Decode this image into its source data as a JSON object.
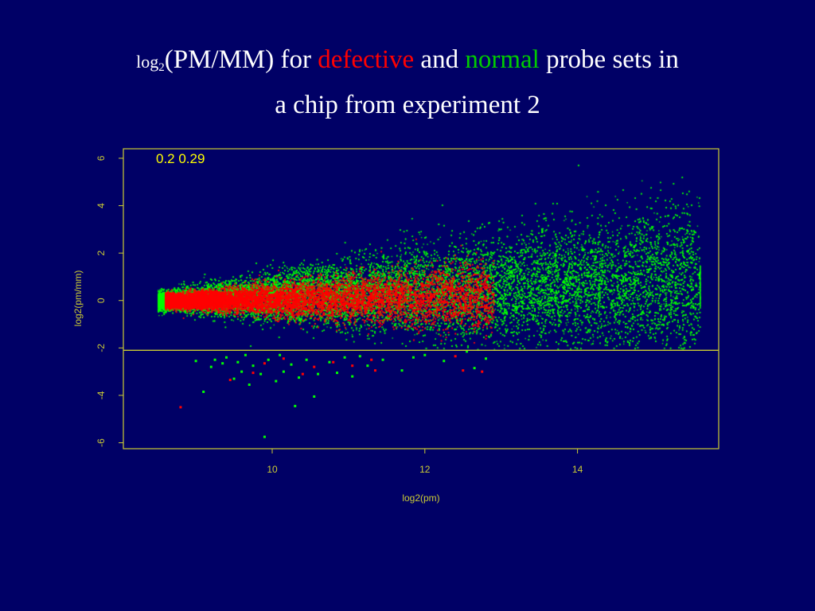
{
  "slide": {
    "title_prefix": "log",
    "title_sub": "2",
    "title_part1": "(PM/MM) for ",
    "title_defective": "defective",
    "title_and": " and ",
    "title_normal": "normal",
    "title_part2": " probe sets in",
    "title_line2": "a chip from experiment 2"
  },
  "colors": {
    "background": "#000066",
    "axes": "#cccc33",
    "defective": "#ff0000",
    "normal": "#00ff00",
    "annotation": "#ffff00"
  },
  "chart_data": {
    "type": "scatter",
    "title": "",
    "xlabel": "log2(pm)",
    "ylabel": "log2(pm/mm)",
    "xlim": [
      8.05,
      15.85
    ],
    "ylim": [
      -6.25,
      6.4
    ],
    "xticks": [
      10,
      12,
      14
    ],
    "yticks": [
      -6,
      -4,
      -2,
      0,
      2,
      4,
      6
    ],
    "annotation": "0.2 0.29",
    "hline_y": -2.1,
    "grid": false,
    "legend": "none",
    "series": [
      {
        "color_key": "normal",
        "outliers_below_cutoff": [
          [
            9.0,
            -2.55
          ],
          [
            9.1,
            -3.85
          ],
          [
            9.2,
            -2.8
          ],
          [
            9.25,
            -2.5
          ],
          [
            9.35,
            -2.65
          ],
          [
            9.4,
            -2.4
          ],
          [
            9.5,
            -3.3
          ],
          [
            9.55,
            -2.6
          ],
          [
            9.6,
            -3.0
          ],
          [
            9.65,
            -2.3
          ],
          [
            9.7,
            -3.55
          ],
          [
            9.75,
            -2.75
          ],
          [
            9.85,
            -3.1
          ],
          [
            9.9,
            -5.75
          ],
          [
            9.95,
            -2.5
          ],
          [
            10.05,
            -3.4
          ],
          [
            10.1,
            -2.3
          ],
          [
            10.15,
            -3.0
          ],
          [
            10.25,
            -2.7
          ],
          [
            10.3,
            -4.45
          ],
          [
            10.35,
            -3.25
          ],
          [
            10.45,
            -2.5
          ],
          [
            10.55,
            -4.05
          ],
          [
            10.6,
            -3.1
          ],
          [
            10.75,
            -2.6
          ],
          [
            10.85,
            -3.05
          ],
          [
            10.95,
            -2.4
          ],
          [
            11.05,
            -3.2
          ],
          [
            11.15,
            -2.35
          ],
          [
            11.25,
            -2.75
          ],
          [
            11.45,
            -2.5
          ],
          [
            11.7,
            -2.95
          ],
          [
            11.85,
            -2.4
          ],
          [
            12.0,
            -2.3
          ],
          [
            12.25,
            -2.55
          ],
          [
            12.55,
            -2.15
          ],
          [
            12.65,
            -2.85
          ],
          [
            12.8,
            -2.45
          ]
        ]
      },
      {
        "color_key": "defective",
        "outliers_below_cutoff": [
          [
            8.8,
            -4.5
          ],
          [
            9.45,
            -3.35
          ],
          [
            9.75,
            -3.05
          ],
          [
            9.9,
            -2.65
          ],
          [
            10.15,
            -2.45
          ],
          [
            10.4,
            -3.1
          ],
          [
            10.55,
            -2.8
          ],
          [
            10.8,
            -2.6
          ],
          [
            11.05,
            -2.75
          ],
          [
            11.3,
            -2.5
          ],
          [
            11.35,
            -2.95
          ],
          [
            12.4,
            -2.35
          ],
          [
            12.5,
            -2.95
          ],
          [
            12.75,
            -3.0
          ]
        ]
      }
    ]
  }
}
